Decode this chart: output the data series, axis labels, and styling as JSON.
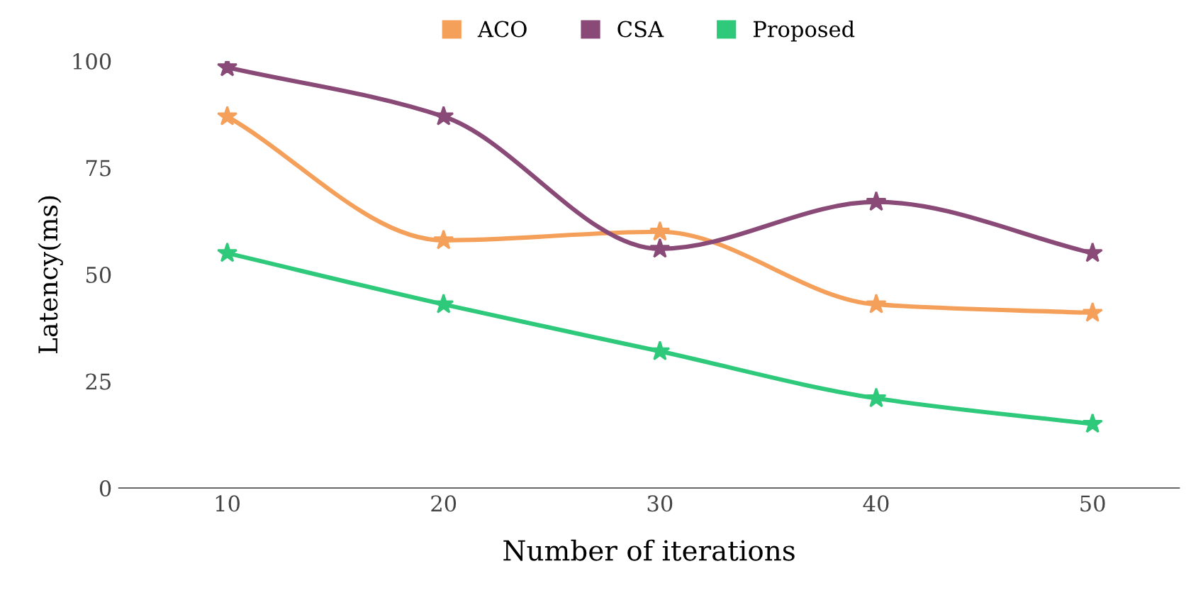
{
  "chart_data": {
    "type": "line",
    "xlabel": "Number of iterations",
    "ylabel": "Latency(ms)",
    "x": [
      10,
      20,
      30,
      40,
      50
    ],
    "series": [
      {
        "name": "ACO",
        "color": "#f5a05a",
        "values": [
          87,
          58,
          60,
          43,
          41
        ]
      },
      {
        "name": "CSA",
        "color": "#8a4a78",
        "values": [
          98.5,
          87,
          56,
          67,
          55
        ]
      },
      {
        "name": "Proposed",
        "color": "#2ec97a",
        "values": [
          55,
          43,
          32,
          21,
          15
        ]
      }
    ],
    "xlim": [
      5,
      54
    ],
    "ylim": [
      0,
      100
    ],
    "xticks": [
      10,
      20,
      30,
      40,
      50
    ],
    "yticks": [
      0,
      25,
      50,
      75,
      100
    ],
    "grid": false,
    "legend": "top",
    "marker": "star",
    "line_style": "solid"
  }
}
